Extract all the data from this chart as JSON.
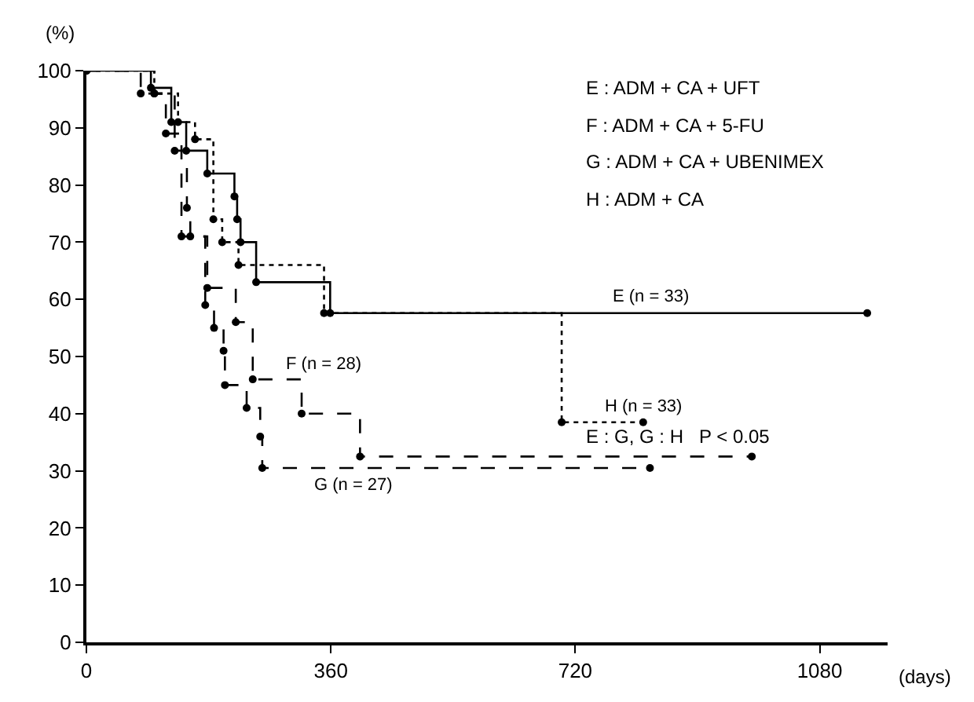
{
  "chart_data": {
    "type": "step",
    "ylabel": "(%)",
    "xlabel": "(days)",
    "series": [
      {
        "color": "#000000",
        "line_style": "solid",
        "x": [
          0,
          95,
          125,
          147,
          178,
          218,
          222,
          227,
          250,
          359,
          1150
        ],
        "values": [
          100,
          97,
          91,
          86,
          82,
          78,
          74,
          70,
          63,
          57.6,
          57.6
        ]
      },
      {
        "color": "#000000",
        "line_style": "dashed",
        "x": [
          0,
          100,
          130,
          148,
          153,
          178,
          220,
          245,
          317,
          403,
          980
        ],
        "values": [
          100,
          96,
          86,
          76,
          71,
          62,
          56,
          46,
          40,
          32.5,
          32.5
        ]
      },
      {
        "color": "#000000",
        "line_style": "dashed",
        "x": [
          0,
          80,
          117,
          140,
          175,
          188,
          202,
          204,
          236,
          256,
          259,
          830
        ],
        "values": [
          100,
          96,
          89,
          71,
          59,
          55,
          51,
          45,
          41,
          36,
          30.5,
          30.5
        ]
      },
      {
        "color": "#000000",
        "line_style": "dotted",
        "x": [
          0,
          100,
          135,
          160,
          187,
          200,
          224,
          350,
          700,
          820
        ],
        "values": [
          100,
          96,
          91,
          88,
          74,
          70,
          66,
          57.6,
          38.5,
          38.5
        ]
      }
    ],
    "marker": "circle",
    "xlim": [
      0,
      1180
    ],
    "xticks": [
      0,
      360,
      720,
      1080
    ],
    "ylim": [
      0,
      100
    ],
    "yticks": [
      0,
      10,
      20,
      30,
      40,
      50,
      60,
      70,
      80,
      90,
      100
    ],
    "legend": false,
    "annotations": [
      "E : ADM + CA + UFT",
      "F : ADM + CA + 5-FU",
      "G : ADM + CA + UBENIMEX",
      "H : ADM + CA",
      "E : G, G : H   P < 0.05",
      {
        "text": "E (n = 33)",
        "x": 770,
        "y": 57.6
      },
      {
        "text": "F (n = 28)",
        "x": 290,
        "y": 46
      },
      {
        "text": "G (n = 27)",
        "x": 330,
        "y": 30.5
      },
      {
        "text": "H (n = 33)",
        "x": 760,
        "y": 38.5
      }
    ]
  }
}
